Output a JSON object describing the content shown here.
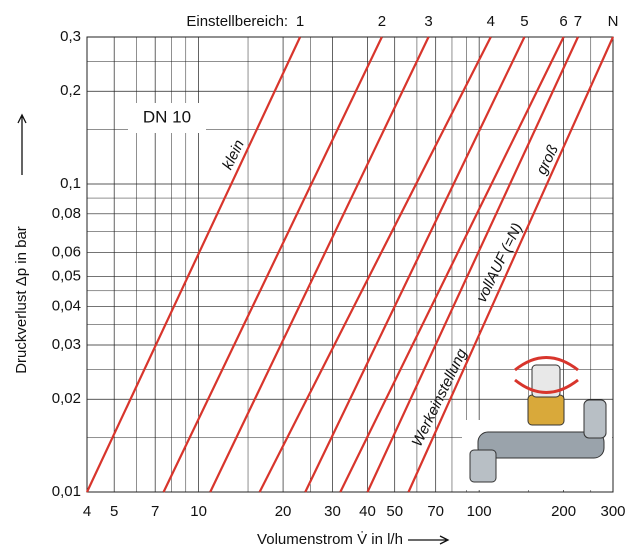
{
  "chart_data": {
    "type": "line",
    "top_label_prefix": "Einstellbereich:",
    "xlabel": "Volumenstrom V̇ in l/h",
    "ylabel": "Druckverlust Δp in bar",
    "xlog": true,
    "ylog": true,
    "grid": true,
    "xlim": [
      4,
      300
    ],
    "ylim": [
      0.01,
      0.3
    ],
    "xticks": [
      4,
      5,
      7,
      10,
      20,
      30,
      40,
      50,
      70,
      100,
      200,
      300
    ],
    "minor_xticks": [
      6,
      8,
      9,
      15,
      25,
      60,
      80,
      90,
      150,
      250
    ],
    "yticks": [
      {
        "value": 0.01,
        "label": "0,01"
      },
      {
        "value": 0.02,
        "label": "0,02"
      },
      {
        "value": 0.03,
        "label": "0,03"
      },
      {
        "value": 0.04,
        "label": "0,04"
      },
      {
        "value": 0.05,
        "label": "0,05"
      },
      {
        "value": 0.06,
        "label": "0,06"
      },
      {
        "value": 0.08,
        "label": "0,08"
      },
      {
        "value": 0.1,
        "label": "0,1"
      },
      {
        "value": 0.2,
        "label": "0,2"
      },
      {
        "value": 0.3,
        "label": "0,3"
      }
    ],
    "minor_yticks": [
      0.015,
      0.025,
      0.035,
      0.045,
      0.07,
      0.09,
      0.15,
      0.25
    ],
    "annotations": [
      "DN 10",
      "klein",
      "groß",
      "vollAUF (=N)",
      "Werkeinstellung"
    ],
    "series": [
      {
        "name": "1",
        "color": "#d8352c",
        "x": [
          4,
          23
        ],
        "values": [
          0.01,
          0.3
        ]
      },
      {
        "name": "2",
        "color": "#d8352c",
        "x": [
          7.5,
          45
        ],
        "values": [
          0.01,
          0.3
        ]
      },
      {
        "name": "3",
        "color": "#d8352c",
        "x": [
          11,
          66
        ],
        "values": [
          0.01,
          0.3
        ]
      },
      {
        "name": "4",
        "color": "#d8352c",
        "x": [
          16.5,
          110
        ],
        "values": [
          0.01,
          0.3
        ]
      },
      {
        "name": "5",
        "color": "#d8352c",
        "x": [
          24,
          145
        ],
        "values": [
          0.01,
          0.3
        ]
      },
      {
        "name": "6",
        "color": "#d8352c",
        "x": [
          32,
          200
        ],
        "values": [
          0.01,
          0.3
        ]
      },
      {
        "name": "7",
        "color": "#d8352c",
        "x": [
          40,
          225
        ],
        "values": [
          0.01,
          0.3
        ]
      },
      {
        "name": "N",
        "color": "#d8352c",
        "x": [
          56,
          300
        ],
        "values": [
          0.01,
          0.3
        ]
      }
    ]
  }
}
